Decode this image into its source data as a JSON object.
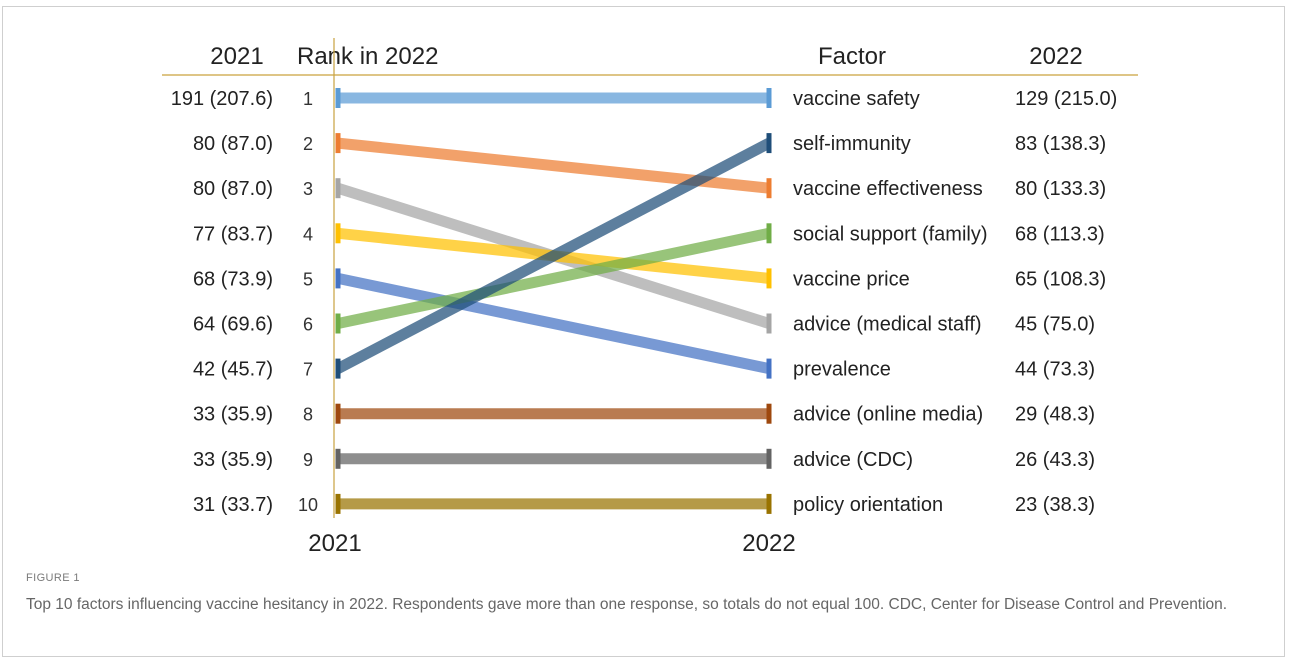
{
  "chart_data": {
    "type": "slope",
    "headers": {
      "left_year": "2021",
      "rank": "Rank in 2022",
      "factor": "Factor",
      "right_year": "2022"
    },
    "axis_labels": {
      "left": "2021",
      "right": "2022"
    },
    "ranks_2022": [
      "1",
      "2",
      "3",
      "4",
      "5",
      "6",
      "7",
      "8",
      "9",
      "10"
    ],
    "values_2021": [
      "191 (207.6)",
      "80 (87.0)",
      "80 (87.0)",
      "77 (83.7)",
      "68 (73.9)",
      "64 (69.6)",
      "42 (45.7)",
      "33 (35.9)",
      "33 (35.9)",
      "31 (33.7)"
    ],
    "series": [
      {
        "name": "vaccine safety",
        "rank_2021": 1,
        "rank_2022": 1,
        "value_2022": "129 (215.0)",
        "color": "#5B9BD5"
      },
      {
        "name": "self-immunity",
        "rank_2021": 7,
        "rank_2022": 2,
        "value_2022": "83 (138.3)",
        "color": "#1F4E79"
      },
      {
        "name": "vaccine effectiveness",
        "rank_2021": 2,
        "rank_2022": 3,
        "value_2022": "80 (133.3)",
        "color": "#ED7D31"
      },
      {
        "name": "social support (family)",
        "rank_2021": 6,
        "rank_2022": 4,
        "value_2022": "68 (113.3)",
        "color": "#70AD47"
      },
      {
        "name": "vaccine price",
        "rank_2021": 4,
        "rank_2022": 5,
        "value_2022": "65 (108.3)",
        "color": "#FFC000"
      },
      {
        "name": "advice (medical staff)",
        "rank_2021": 3,
        "rank_2022": 6,
        "value_2022": "45 (75.0)",
        "color": "#A5A5A5"
      },
      {
        "name": "prevalence",
        "rank_2021": 5,
        "rank_2022": 7,
        "value_2022": "44 (73.3)",
        "color": "#4472C4"
      },
      {
        "name": "advice (online media)",
        "rank_2021": 8,
        "rank_2022": 8,
        "value_2022": "29 (48.3)",
        "color": "#9E480E"
      },
      {
        "name": "advice (CDC)",
        "rank_2021": 9,
        "rank_2022": 9,
        "value_2022": "26 (43.3)",
        "color": "#636363"
      },
      {
        "name": "policy orientation",
        "rank_2021": 10,
        "rank_2022": 10,
        "value_2022": "23 (38.3)",
        "color": "#997300"
      }
    ],
    "rule_color": "#C9A23F"
  },
  "caption": {
    "label": "FIGURE 1",
    "text": "Top 10 factors influencing vaccine hesitancy in 2022. Respondents gave more than one response, so totals do not equal 100. CDC, Center for Disease Control and Prevention."
  }
}
